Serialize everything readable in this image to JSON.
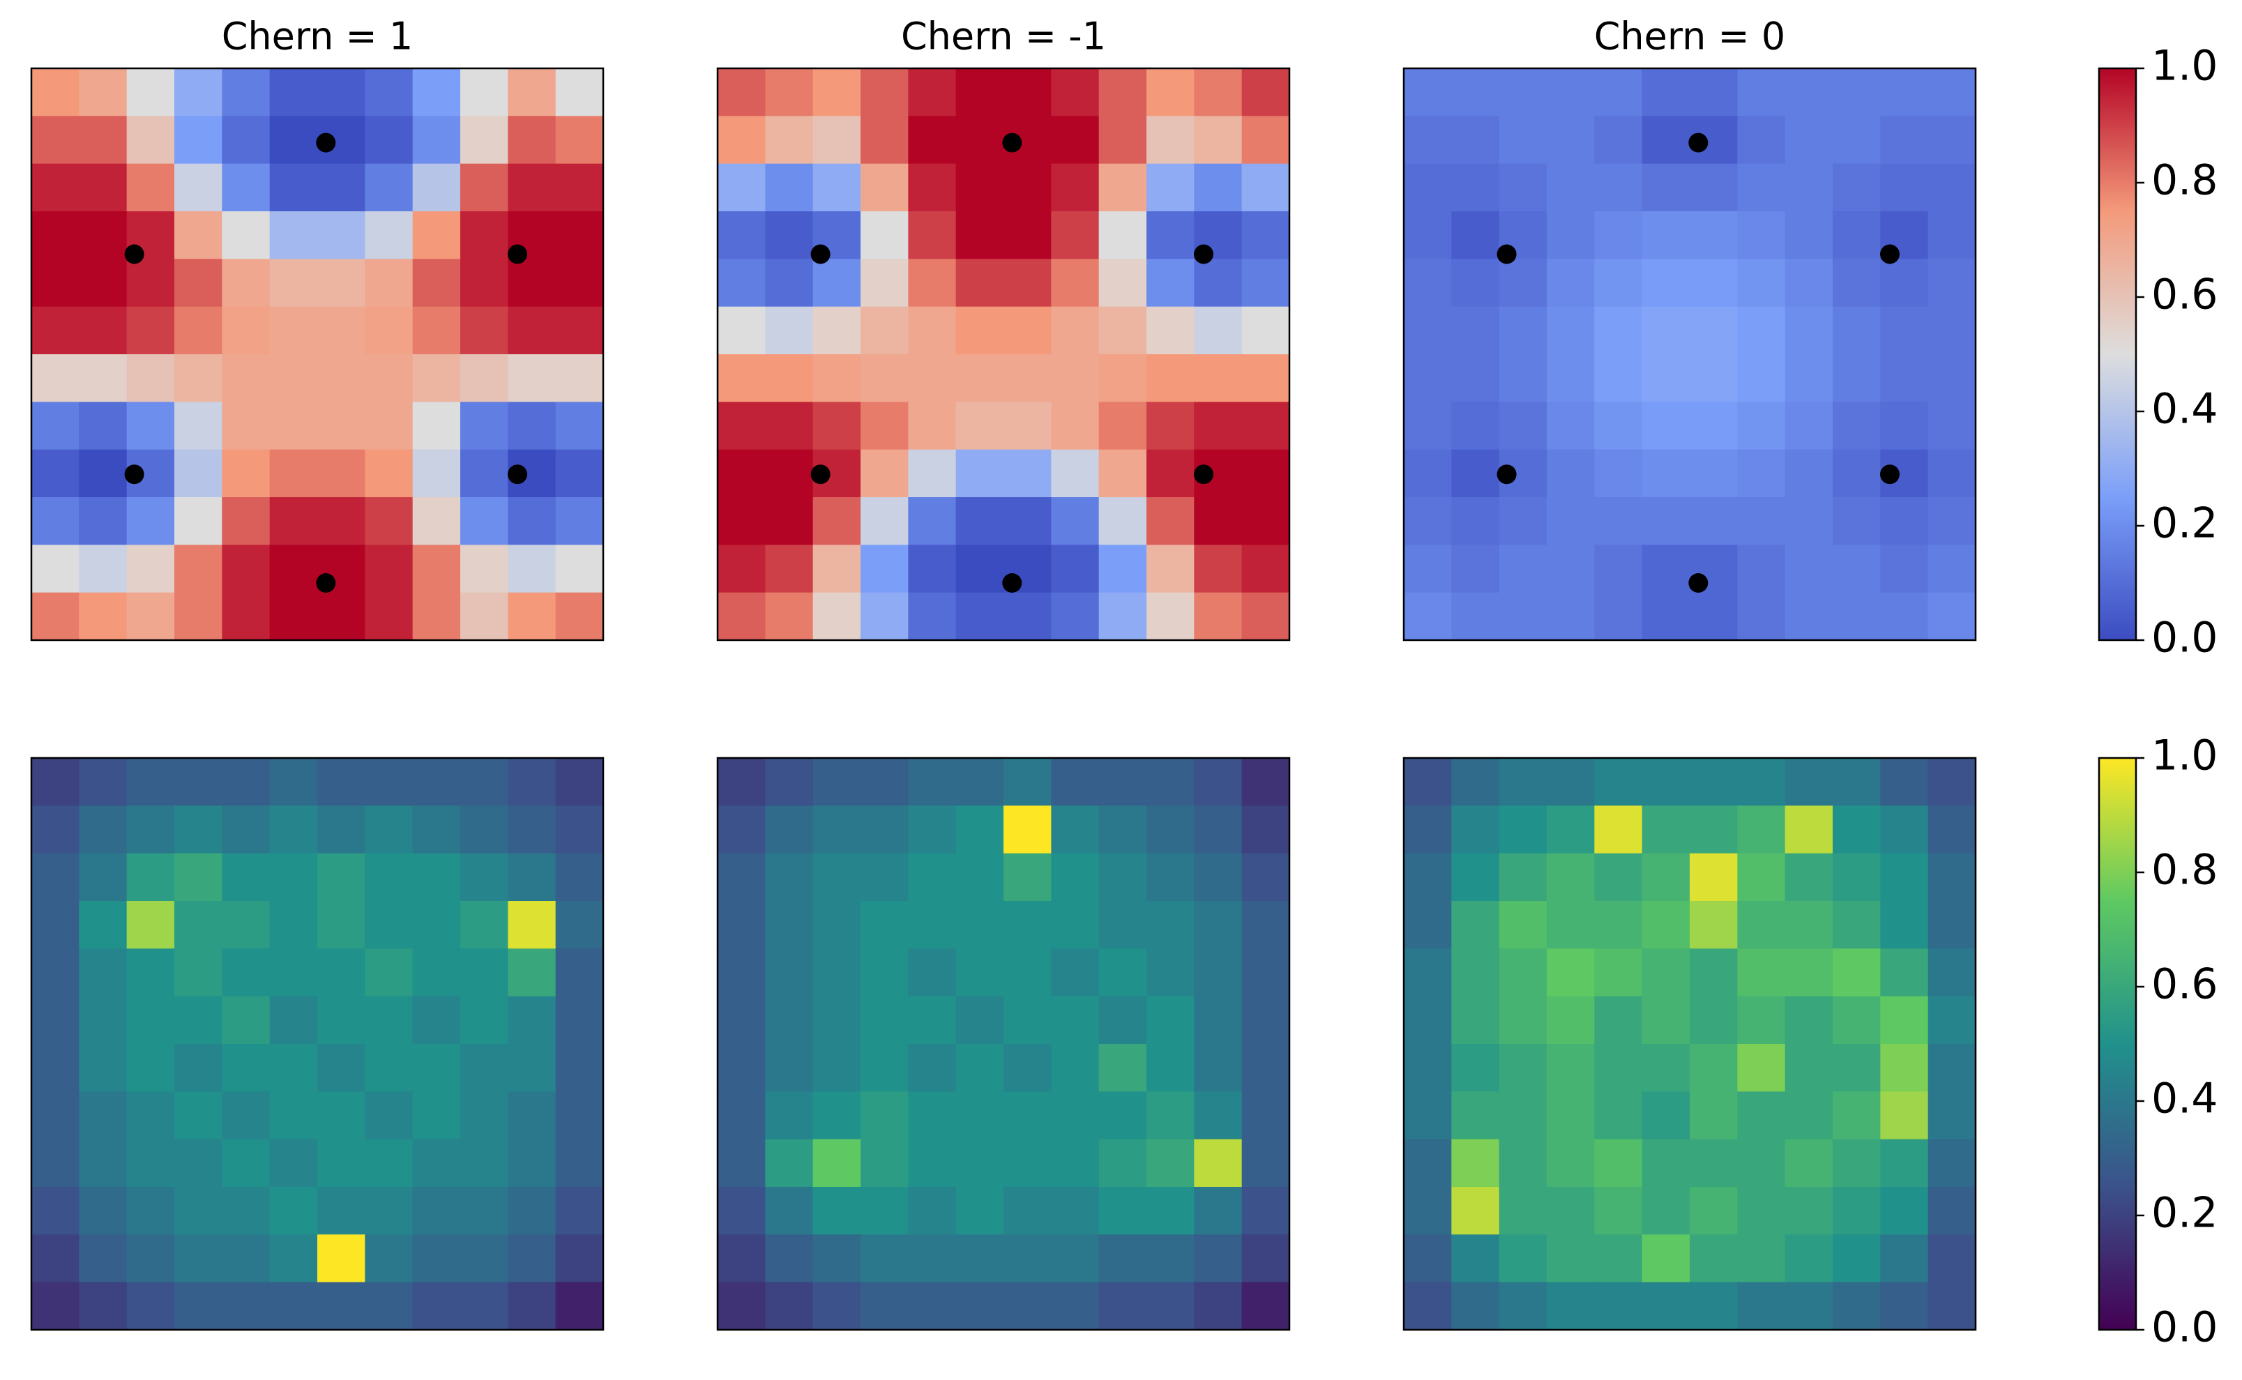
{
  "chart_data": [
    {
      "type": "heatmap",
      "title": "Chern = 1",
      "colormap": "coolwarm",
      "z": [
        [
          0.75,
          0.7,
          0.5,
          0.3,
          0.15,
          0.05,
          0.05,
          0.1,
          0.25,
          0.5,
          0.7,
          0.5
        ],
        [
          0.85,
          0.85,
          0.6,
          0.25,
          0.1,
          0,
          0,
          0.05,
          0.2,
          0.55,
          0.85,
          0.8
        ],
        [
          0.95,
          0.95,
          0.8,
          0.45,
          0.2,
          0.05,
          0.05,
          0.15,
          0.4,
          0.85,
          0.95,
          0.95
        ],
        [
          1,
          1,
          0.95,
          0.7,
          0.5,
          0.35,
          0.35,
          0.45,
          0.75,
          0.95,
          1,
          1
        ],
        [
          1,
          1,
          0.95,
          0.85,
          0.7,
          0.65,
          0.65,
          0.7,
          0.85,
          0.95,
          1,
          1
        ],
        [
          0.95,
          0.95,
          0.9,
          0.8,
          0.72,
          0.7,
          0.7,
          0.72,
          0.8,
          0.9,
          0.95,
          0.95
        ],
        [
          0.55,
          0.55,
          0.6,
          0.65,
          0.7,
          0.7,
          0.7,
          0.7,
          0.65,
          0.6,
          0.55,
          0.55
        ],
        [
          0.15,
          0.1,
          0.2,
          0.45,
          0.7,
          0.7,
          0.7,
          0.7,
          0.5,
          0.15,
          0.1,
          0.15
        ],
        [
          0.05,
          0,
          0.1,
          0.4,
          0.75,
          0.8,
          0.8,
          0.75,
          0.45,
          0.1,
          0,
          0.05
        ],
        [
          0.15,
          0.1,
          0.2,
          0.5,
          0.85,
          0.95,
          0.95,
          0.9,
          0.55,
          0.2,
          0.1,
          0.15
        ],
        [
          0.5,
          0.45,
          0.55,
          0.8,
          0.95,
          1,
          1,
          0.95,
          0.8,
          0.55,
          0.45,
          0.5
        ],
        [
          0.8,
          0.75,
          0.7,
          0.8,
          0.95,
          1,
          1,
          0.95,
          0.8,
          0.6,
          0.75,
          0.8
        ]
      ],
      "points": {
        "x": [
          6.18,
          2.16,
          10.2,
          2.16,
          10.2,
          6.18
        ],
        "y": [
          1.56,
          3.9,
          3.9,
          8.52,
          8.52,
          10.8
        ]
      }
    },
    {
      "type": "heatmap",
      "title": "Chern = -1",
      "colormap": "coolwarm",
      "z": [
        [
          0.85,
          0.8,
          0.75,
          0.85,
          0.95,
          1,
          1,
          0.95,
          0.85,
          0.75,
          0.8,
          0.9
        ],
        [
          0.75,
          0.65,
          0.6,
          0.85,
          1,
          1,
          1,
          1,
          0.85,
          0.6,
          0.65,
          0.8
        ],
        [
          0.3,
          0.2,
          0.3,
          0.7,
          0.95,
          1,
          1,
          0.95,
          0.7,
          0.3,
          0.2,
          0.3
        ],
        [
          0.1,
          0.05,
          0.1,
          0.5,
          0.9,
          1,
          1,
          0.9,
          0.5,
          0.1,
          0.05,
          0.1
        ],
        [
          0.15,
          0.1,
          0.2,
          0.55,
          0.8,
          0.9,
          0.9,
          0.8,
          0.55,
          0.2,
          0.1,
          0.15
        ],
        [
          0.5,
          0.45,
          0.55,
          0.65,
          0.7,
          0.75,
          0.75,
          0.7,
          0.65,
          0.55,
          0.45,
          0.5
        ],
        [
          0.75,
          0.75,
          0.72,
          0.7,
          0.7,
          0.7,
          0.7,
          0.7,
          0.72,
          0.75,
          0.75,
          0.75
        ],
        [
          0.95,
          0.95,
          0.9,
          0.8,
          0.7,
          0.65,
          0.65,
          0.7,
          0.8,
          0.9,
          0.95,
          0.95
        ],
        [
          1,
          1,
          0.95,
          0.7,
          0.45,
          0.3,
          0.3,
          0.45,
          0.7,
          0.95,
          1,
          1
        ],
        [
          1,
          1,
          0.85,
          0.45,
          0.15,
          0.05,
          0.05,
          0.15,
          0.45,
          0.85,
          1,
          1
        ],
        [
          0.95,
          0.9,
          0.65,
          0.25,
          0.05,
          0,
          0,
          0.05,
          0.25,
          0.65,
          0.9,
          0.95
        ],
        [
          0.85,
          0.8,
          0.55,
          0.3,
          0.1,
          0.05,
          0.05,
          0.1,
          0.3,
          0.55,
          0.8,
          0.85
        ]
      ],
      "points": {
        "x": [
          6.18,
          2.16,
          10.2,
          2.16,
          10.2,
          6.18
        ],
        "y": [
          1.56,
          3.9,
          3.9,
          8.52,
          8.52,
          10.8
        ]
      }
    },
    {
      "type": "heatmap",
      "title": "Chern = 0",
      "colormap": "coolwarm",
      "z": [
        [
          0.15,
          0.15,
          0.15,
          0.15,
          0.15,
          0.1,
          0.1,
          0.15,
          0.15,
          0.15,
          0.15,
          0.15
        ],
        [
          0.12,
          0.12,
          0.15,
          0.15,
          0.12,
          0.05,
          0.05,
          0.12,
          0.15,
          0.15,
          0.12,
          0.12
        ],
        [
          0.1,
          0.1,
          0.12,
          0.15,
          0.15,
          0.12,
          0.12,
          0.15,
          0.15,
          0.12,
          0.1,
          0.1
        ],
        [
          0.1,
          0.05,
          0.1,
          0.15,
          0.18,
          0.2,
          0.2,
          0.18,
          0.15,
          0.1,
          0.05,
          0.1
        ],
        [
          0.12,
          0.1,
          0.12,
          0.18,
          0.22,
          0.24,
          0.24,
          0.22,
          0.18,
          0.12,
          0.1,
          0.12
        ],
        [
          0.12,
          0.12,
          0.15,
          0.2,
          0.25,
          0.27,
          0.27,
          0.25,
          0.2,
          0.15,
          0.12,
          0.12
        ],
        [
          0.12,
          0.12,
          0.15,
          0.2,
          0.25,
          0.27,
          0.27,
          0.25,
          0.2,
          0.15,
          0.12,
          0.12
        ],
        [
          0.12,
          0.1,
          0.12,
          0.18,
          0.22,
          0.24,
          0.24,
          0.22,
          0.18,
          0.12,
          0.1,
          0.12
        ],
        [
          0.1,
          0.05,
          0.1,
          0.15,
          0.18,
          0.2,
          0.2,
          0.18,
          0.15,
          0.1,
          0.05,
          0.1
        ],
        [
          0.12,
          0.1,
          0.12,
          0.15,
          0.15,
          0.15,
          0.15,
          0.15,
          0.15,
          0.12,
          0.1,
          0.12
        ],
        [
          0.15,
          0.12,
          0.15,
          0.15,
          0.12,
          0.08,
          0.08,
          0.12,
          0.15,
          0.15,
          0.12,
          0.15
        ],
        [
          0.18,
          0.15,
          0.15,
          0.15,
          0.12,
          0.08,
          0.08,
          0.12,
          0.15,
          0.15,
          0.15,
          0.18
        ]
      ],
      "points": {
        "x": [
          6.18,
          2.16,
          10.2,
          2.16,
          10.2,
          6.18
        ],
        "y": [
          1.56,
          3.9,
          3.9,
          8.52,
          8.52,
          10.8
        ]
      },
      "colorbar": {
        "ylim": [
          0,
          1
        ],
        "yticks": [
          {
            "value": 0,
            "label": "0.0"
          },
          {
            "value": 0.2,
            "label": "0.2"
          },
          {
            "value": 0.4,
            "label": "0.4"
          },
          {
            "value": 0.6,
            "label": "0.6"
          },
          {
            "value": 0.8,
            "label": "0.8"
          },
          {
            "value": 1,
            "label": "1.0"
          }
        ]
      }
    },
    {
      "type": "heatmap",
      "colormap": "viridis",
      "z": [
        [
          0.2,
          0.25,
          0.3,
          0.3,
          0.3,
          0.35,
          0.3,
          0.3,
          0.3,
          0.3,
          0.25,
          0.2
        ],
        [
          0.25,
          0.35,
          0.4,
          0.45,
          0.4,
          0.45,
          0.4,
          0.45,
          0.4,
          0.35,
          0.3,
          0.25
        ],
        [
          0.3,
          0.4,
          0.55,
          0.6,
          0.5,
          0.5,
          0.55,
          0.5,
          0.5,
          0.45,
          0.4,
          0.3
        ],
        [
          0.3,
          0.5,
          0.85,
          0.55,
          0.55,
          0.5,
          0.55,
          0.5,
          0.5,
          0.55,
          0.95,
          0.35
        ],
        [
          0.3,
          0.45,
          0.5,
          0.55,
          0.5,
          0.5,
          0.5,
          0.55,
          0.5,
          0.5,
          0.6,
          0.3
        ],
        [
          0.3,
          0.45,
          0.5,
          0.5,
          0.55,
          0.45,
          0.5,
          0.5,
          0.45,
          0.5,
          0.45,
          0.3
        ],
        [
          0.3,
          0.45,
          0.5,
          0.45,
          0.5,
          0.5,
          0.45,
          0.5,
          0.5,
          0.45,
          0.45,
          0.3
        ],
        [
          0.3,
          0.4,
          0.45,
          0.5,
          0.45,
          0.5,
          0.5,
          0.45,
          0.5,
          0.45,
          0.4,
          0.3
        ],
        [
          0.3,
          0.4,
          0.45,
          0.45,
          0.5,
          0.45,
          0.5,
          0.5,
          0.45,
          0.45,
          0.4,
          0.3
        ],
        [
          0.25,
          0.35,
          0.4,
          0.45,
          0.45,
          0.5,
          0.45,
          0.45,
          0.4,
          0.4,
          0.35,
          0.25
        ],
        [
          0.2,
          0.3,
          0.35,
          0.4,
          0.4,
          0.45,
          1,
          0.4,
          0.35,
          0.35,
          0.3,
          0.2
        ],
        [
          0.15,
          0.2,
          0.25,
          0.3,
          0.3,
          0.3,
          0.3,
          0.3,
          0.25,
          0.25,
          0.2,
          0.1
        ]
      ]
    },
    {
      "type": "heatmap",
      "colormap": "viridis",
      "z": [
        [
          0.2,
          0.25,
          0.3,
          0.3,
          0.35,
          0.35,
          0.4,
          0.3,
          0.3,
          0.3,
          0.25,
          0.15
        ],
        [
          0.25,
          0.35,
          0.4,
          0.4,
          0.45,
          0.5,
          1,
          0.45,
          0.4,
          0.35,
          0.3,
          0.2
        ],
        [
          0.3,
          0.4,
          0.45,
          0.45,
          0.5,
          0.5,
          0.6,
          0.5,
          0.45,
          0.4,
          0.35,
          0.25
        ],
        [
          0.3,
          0.4,
          0.45,
          0.5,
          0.5,
          0.5,
          0.5,
          0.5,
          0.45,
          0.45,
          0.4,
          0.3
        ],
        [
          0.3,
          0.4,
          0.45,
          0.5,
          0.45,
          0.5,
          0.5,
          0.45,
          0.5,
          0.45,
          0.4,
          0.3
        ],
        [
          0.3,
          0.4,
          0.45,
          0.5,
          0.5,
          0.45,
          0.5,
          0.5,
          0.45,
          0.5,
          0.4,
          0.3
        ],
        [
          0.3,
          0.4,
          0.45,
          0.5,
          0.45,
          0.5,
          0.45,
          0.5,
          0.6,
          0.5,
          0.4,
          0.3
        ],
        [
          0.3,
          0.45,
          0.5,
          0.55,
          0.5,
          0.5,
          0.5,
          0.5,
          0.5,
          0.55,
          0.45,
          0.3
        ],
        [
          0.3,
          0.55,
          0.75,
          0.55,
          0.5,
          0.5,
          0.5,
          0.5,
          0.55,
          0.6,
          0.9,
          0.3
        ],
        [
          0.25,
          0.4,
          0.5,
          0.5,
          0.45,
          0.5,
          0.45,
          0.45,
          0.5,
          0.5,
          0.4,
          0.25
        ],
        [
          0.2,
          0.3,
          0.35,
          0.4,
          0.4,
          0.4,
          0.4,
          0.4,
          0.35,
          0.35,
          0.3,
          0.2
        ],
        [
          0.15,
          0.2,
          0.25,
          0.3,
          0.3,
          0.3,
          0.3,
          0.3,
          0.25,
          0.25,
          0.2,
          0.1
        ]
      ]
    },
    {
      "type": "heatmap",
      "colormap": "viridis",
      "z": [
        [
          0.25,
          0.35,
          0.4,
          0.4,
          0.45,
          0.45,
          0.45,
          0.45,
          0.4,
          0.4,
          0.3,
          0.25
        ],
        [
          0.3,
          0.45,
          0.5,
          0.55,
          0.95,
          0.6,
          0.6,
          0.65,
          0.9,
          0.5,
          0.45,
          0.3
        ],
        [
          0.35,
          0.5,
          0.6,
          0.65,
          0.6,
          0.65,
          0.95,
          0.7,
          0.6,
          0.55,
          0.5,
          0.35
        ],
        [
          0.35,
          0.6,
          0.7,
          0.65,
          0.65,
          0.7,
          0.85,
          0.65,
          0.65,
          0.6,
          0.5,
          0.35
        ],
        [
          0.4,
          0.6,
          0.65,
          0.75,
          0.7,
          0.65,
          0.6,
          0.7,
          0.7,
          0.75,
          0.6,
          0.4
        ],
        [
          0.4,
          0.6,
          0.65,
          0.7,
          0.6,
          0.65,
          0.6,
          0.65,
          0.6,
          0.65,
          0.75,
          0.45
        ],
        [
          0.4,
          0.55,
          0.6,
          0.65,
          0.6,
          0.6,
          0.65,
          0.8,
          0.6,
          0.6,
          0.8,
          0.4
        ],
        [
          0.4,
          0.6,
          0.6,
          0.65,
          0.6,
          0.55,
          0.65,
          0.6,
          0.6,
          0.65,
          0.85,
          0.4
        ],
        [
          0.35,
          0.8,
          0.6,
          0.65,
          0.7,
          0.6,
          0.6,
          0.6,
          0.65,
          0.6,
          0.55,
          0.35
        ],
        [
          0.35,
          0.9,
          0.6,
          0.6,
          0.65,
          0.6,
          0.65,
          0.6,
          0.6,
          0.55,
          0.5,
          0.3
        ],
        [
          0.3,
          0.45,
          0.55,
          0.6,
          0.6,
          0.75,
          0.6,
          0.6,
          0.55,
          0.5,
          0.4,
          0.25
        ],
        [
          0.25,
          0.35,
          0.4,
          0.45,
          0.45,
          0.45,
          0.45,
          0.4,
          0.4,
          0.35,
          0.3,
          0.25
        ]
      ],
      "colorbar": {
        "ylim": [
          0,
          1
        ],
        "yticks": [
          {
            "value": 0,
            "label": "0.0"
          },
          {
            "value": 0.2,
            "label": "0.2"
          },
          {
            "value": 0.4,
            "label": "0.4"
          },
          {
            "value": 0.6,
            "label": "0.6"
          },
          {
            "value": 0.8,
            "label": "0.8"
          },
          {
            "value": 1,
            "label": "1.0"
          }
        ]
      }
    }
  ]
}
